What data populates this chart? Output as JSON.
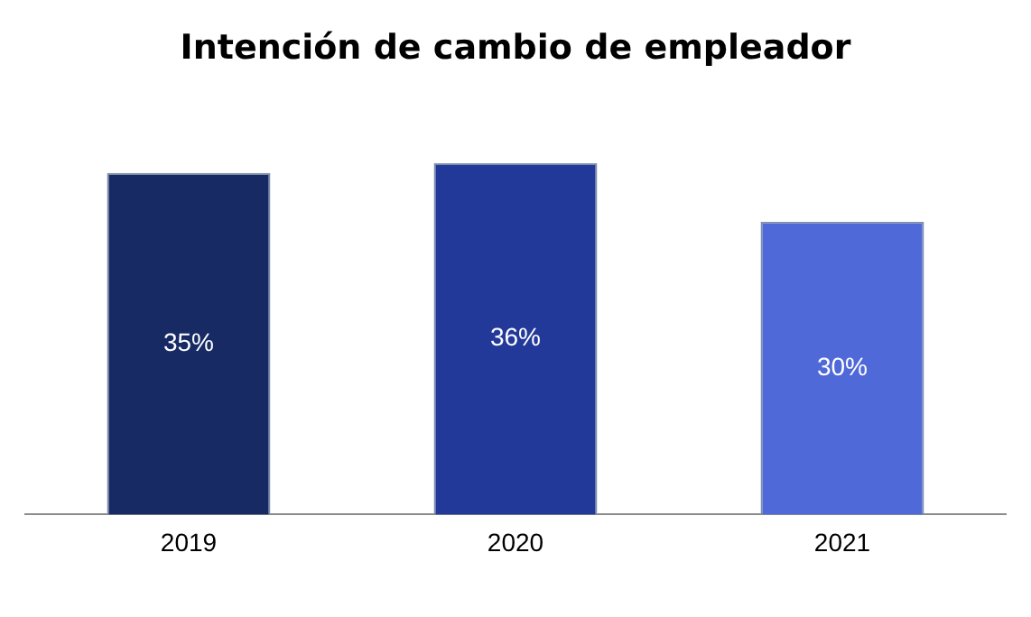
{
  "chart_data": {
    "type": "bar",
    "title": "Intención de cambio de empleador",
    "categories": [
      "2019",
      "2020",
      "2021"
    ],
    "values": [
      35,
      36,
      30
    ],
    "value_labels": [
      "35%",
      "36%",
      "30%"
    ],
    "colors": [
      "#172a64",
      "#22399a",
      "#5069d8"
    ],
    "tick_labels": "x",
    "grid": false,
    "legend": false
  }
}
